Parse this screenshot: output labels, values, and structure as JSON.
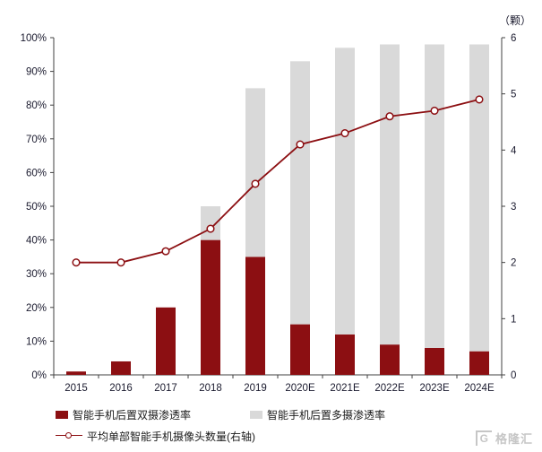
{
  "watermark": {
    "logo_text": "G",
    "brand": "格隆汇"
  },
  "chart_data": {
    "type": "bar+line",
    "subtype": "stacked-bars-with-right-axis-line",
    "title": "",
    "categories": [
      "2015",
      "2016",
      "2017",
      "2018",
      "2019",
      "2020E",
      "2021E",
      "2022E",
      "2023E",
      "2024E"
    ],
    "bar_series": [
      {
        "name": "智能手机后置双摄渗透率",
        "color": "#8C0F12",
        "values": [
          1,
          4,
          20,
          40,
          35,
          15,
          12,
          9,
          8,
          7
        ]
      },
      {
        "name": "智能手机后置多摄渗透率",
        "color": "#D9D9D9",
        "values": [
          0,
          0,
          0,
          10,
          50,
          78,
          85,
          89,
          90,
          91
        ]
      }
    ],
    "line_series": {
      "name": "平均单部智能手机摄像头数量(右轴)",
      "color": "#8C0F12",
      "axis": "right",
      "values": [
        2.0,
        2.0,
        2.2,
        2.6,
        3.4,
        4.1,
        4.3,
        4.6,
        4.7,
        4.9
      ]
    },
    "left_axis": {
      "min": 0,
      "max": 100,
      "step": 10,
      "format": "percent",
      "tick_labels": [
        "0%",
        "10%",
        "20%",
        "30%",
        "40%",
        "50%",
        "60%",
        "70%",
        "80%",
        "90%",
        "100%"
      ]
    },
    "right_axis": {
      "min": 0,
      "max": 6,
      "step": 1,
      "unit": "（颗）",
      "tick_labels": [
        "0",
        "1",
        "2",
        "3",
        "4",
        "5",
        "6"
      ]
    },
    "stacked": true,
    "grid": false,
    "legend_position": "bottom-left"
  }
}
